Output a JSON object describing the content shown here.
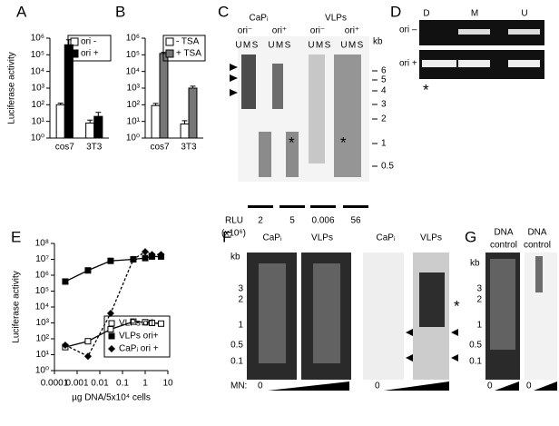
{
  "chart_data": [
    {
      "type": "bar",
      "panel": "A",
      "y_label": "Luciferase activity",
      "log_scale": true,
      "categories": [
        "cos7",
        "3T3"
      ],
      "ylim": [
        1,
        1000000
      ],
      "yticks": [
        {
          "value": 1,
          "label": "10⁰"
        },
        {
          "value": 10,
          "label": "10¹"
        },
        {
          "value": 100,
          "label": "10²"
        },
        {
          "value": 1000,
          "label": "10³"
        },
        {
          "value": 10000,
          "label": "10⁴"
        },
        {
          "value": 100000,
          "label": "10⁵"
        },
        {
          "value": 1000000,
          "label": "10⁶"
        }
      ],
      "series": [
        {
          "name": "ori -",
          "color": "#ffffff",
          "values": [
            100,
            8
          ],
          "errors": [
            25,
            4
          ]
        },
        {
          "name": "ori +",
          "color": "#000000",
          "values": [
            400000,
            20
          ],
          "errors": [
            400000,
            15
          ]
        }
      ]
    },
    {
      "type": "bar",
      "panel": "B",
      "log_scale": true,
      "categories": [
        "cos7",
        "3T3"
      ],
      "ylim": [
        1,
        1000000
      ],
      "yticks": [
        {
          "value": 1,
          "label": "10⁰"
        },
        {
          "value": 10,
          "label": "10¹"
        },
        {
          "value": 100,
          "label": "10²"
        },
        {
          "value": 1000,
          "label": "10³"
        },
        {
          "value": 10000,
          "label": "10⁴"
        },
        {
          "value": 100000,
          "label": "10⁵"
        },
        {
          "value": 1000000,
          "label": "10⁶"
        }
      ],
      "series": [
        {
          "name": "- TSA",
          "color": "#ffffff",
          "values": [
            90,
            7
          ],
          "errors": [
            30,
            4
          ]
        },
        {
          "name": "+ TSA",
          "color": "#777777",
          "values": [
            120000,
            1000
          ],
          "errors": [
            20000,
            300
          ]
        }
      ]
    },
    {
      "type": "line",
      "panel": "E",
      "y_label": "Luciferase activity",
      "x_label": "µg DNA/5x10⁴ cells",
      "log_scale": true,
      "x_log_scale": true,
      "xlim": [
        0.0001,
        10
      ],
      "xticks": [
        0.0001,
        0.001,
        0.01,
        0.1,
        1,
        10
      ],
      "ylim": [
        1,
        100000000
      ],
      "yticks": [
        {
          "value": 1,
          "label": "10⁰"
        },
        {
          "value": 10,
          "label": "10¹"
        },
        {
          "value": 100,
          "label": "10²"
        },
        {
          "value": 1000,
          "label": "10³"
        },
        {
          "value": 10000,
          "label": "10⁴"
        },
        {
          "value": 100000,
          "label": "10⁵"
        },
        {
          "value": 1000000,
          "label": "10⁶"
        },
        {
          "value": 10000000,
          "label": "10⁷"
        },
        {
          "value": 100000000,
          "label": "10⁸"
        }
      ],
      "series": [
        {
          "name": "VLPs ori -",
          "color": "#000000",
          "marker": "open-square",
          "dashed": false,
          "x": [
            0.0003,
            0.003,
            0.03,
            0.3,
            1,
            2,
            5
          ],
          "values": [
            30,
            70,
            400,
            1200,
            1100,
            1000,
            900
          ]
        },
        {
          "name": "VLPs ori+",
          "color": "#000000",
          "marker": "square",
          "dashed": false,
          "x": [
            0.0003,
            0.003,
            0.03,
            0.3,
            1,
            2,
            5
          ],
          "values": [
            400000,
            2000000,
            8000000,
            10000000,
            12000000,
            15000000,
            15000000
          ]
        },
        {
          "name": "CaPᵢ ori +",
          "color": "#000000",
          "marker": "diamond",
          "dashed": true,
          "x": [
            0.0003,
            0.003,
            0.03,
            0.3,
            1,
            2,
            5
          ],
          "values": [
            40,
            8,
            4000,
            10000000,
            30000000,
            20000000,
            20000000
          ]
        }
      ]
    }
  ],
  "gel_c": {
    "panel": "C",
    "groups": [
      "CaPᵢ",
      "VLPs"
    ],
    "subgroups": [
      "ori⁻",
      "ori⁺",
      "ori⁻",
      "ori⁺"
    ],
    "lanes": [
      "U",
      "M",
      "S"
    ],
    "size_unit": "kb",
    "sizes": [
      6,
      5,
      4,
      3,
      2,
      1,
      0.5
    ],
    "star": "*",
    "rlu_label": "RLU",
    "rlu_unit": "(x10⁶)",
    "rlu_values": [
      2,
      5,
      0.006,
      56
    ]
  },
  "gel_d": {
    "panel": "D",
    "lanes": [
      "D",
      "M",
      "U"
    ],
    "rows": [
      "ori –",
      "ori +"
    ],
    "star": "*"
  },
  "gel_f": {
    "panel": "F",
    "groups": [
      "CaPᵢ",
      "VLPs",
      "CaPᵢ",
      "VLPs"
    ],
    "size_unit": "kb",
    "sizes": [
      3,
      2,
      1,
      0.5,
      0.1
    ],
    "mn_label": "MN:",
    "zero": "0",
    "star": "*"
  },
  "gel_g": {
    "panel": "G",
    "group_top": "DNA",
    "group_bottom": "control",
    "size_unit": "kb",
    "sizes": [
      3,
      2,
      1,
      0.5,
      0.1
    ],
    "zero": "0"
  }
}
